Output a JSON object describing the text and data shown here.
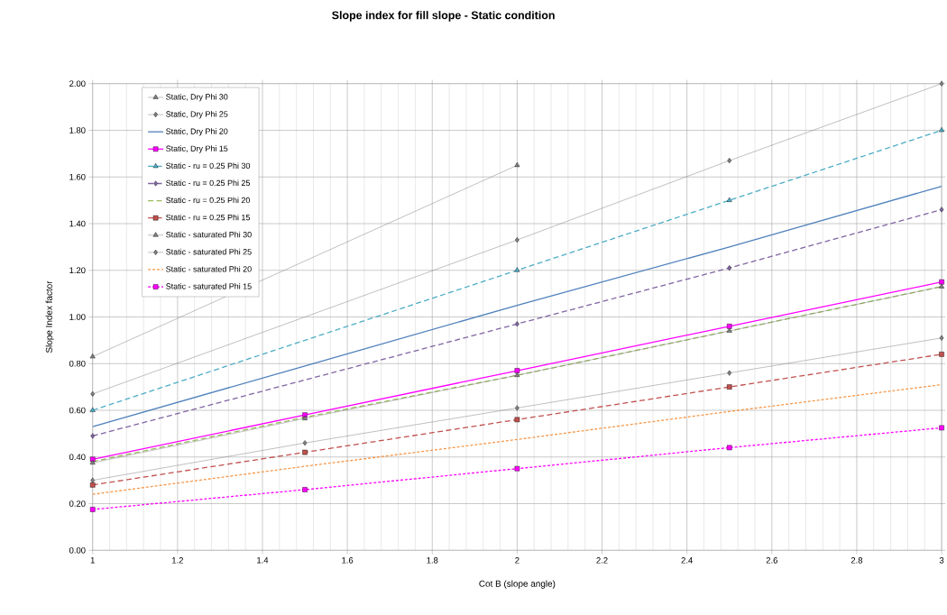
{
  "chart_data": {
    "type": "line",
    "title": "Slope index for fill slope - Static condition",
    "xlabel": "Cot B (slope angle)",
    "ylabel": "Slope Index factor",
    "x": [
      1,
      1.5,
      2,
      2.5,
      3
    ],
    "xlim": [
      1,
      3
    ],
    "xticks": [
      1,
      1.2,
      1.4,
      1.6,
      1.8,
      2,
      2.2,
      2.4,
      2.6,
      2.8,
      3
    ],
    "ylim": [
      0,
      2
    ],
    "yticks": [
      {
        "value": 0,
        "label": "0.00"
      },
      {
        "value": 0.2,
        "label": "0.20"
      },
      {
        "value": 0.4,
        "label": "0.40"
      },
      {
        "value": 0.6,
        "label": "0.60"
      },
      {
        "value": 0.8,
        "label": "0.80"
      },
      {
        "value": 1,
        "label": "1.00"
      },
      {
        "value": 1.2,
        "label": "1.20"
      },
      {
        "value": 1.4,
        "label": "1.40"
      },
      {
        "value": 1.6,
        "label": "1.60"
      },
      {
        "value": 1.8,
        "label": "1.80"
      },
      {
        "value": 2,
        "label": "2.00"
      }
    ],
    "grid": true,
    "legend": "top left",
    "series": [
      {
        "name": "Static, Dry Phi 30",
        "color": "#808080",
        "marker": "triangle",
        "line_style": "solid",
        "values": [
          0.83,
          null,
          1.65,
          null,
          null
        ]
      },
      {
        "name": "Static, Dry Phi 25",
        "color": "#808080",
        "marker": "diamond",
        "line_style": "solid",
        "values": [
          0.67,
          null,
          1.33,
          1.67,
          2.0
        ]
      },
      {
        "name": "Static, Dry Phi 20",
        "color": "#4f81bd",
        "marker": "none",
        "line_style": "solid",
        "values": [
          0.53,
          0.79,
          1.05,
          1.3,
          1.56
        ]
      },
      {
        "name": "Static, Dry Phi 15",
        "color": "#ff00ff",
        "marker": "square",
        "line_style": "solid",
        "values": [
          0.39,
          0.58,
          0.77,
          0.96,
          1.15
        ]
      },
      {
        "name": "Static - ru = 0.25 Phi 30",
        "color": "#4bacc6",
        "marker": "triangle",
        "line_style": "dashed",
        "values": [
          0.6,
          null,
          1.2,
          1.5,
          1.8
        ]
      },
      {
        "name": "Static - ru = 0.25 Phi 25",
        "color": "#8064a2",
        "marker": "diamond",
        "line_style": "dashed",
        "values": [
          0.49,
          null,
          0.97,
          1.21,
          1.46
        ]
      },
      {
        "name": "Static - ru = 0.25 Phi 20",
        "color": "#9bbb59",
        "marker": "none",
        "line_style": "dashed",
        "values": [
          0.38,
          0.57,
          0.75,
          0.94,
          1.13
        ]
      },
      {
        "name": "Static - ru = 0.25 Phi 15",
        "color": "#c0504d",
        "marker": "square",
        "line_style": "dashed",
        "values": [
          0.28,
          0.42,
          0.56,
          0.7,
          0.84
        ]
      },
      {
        "name": "Static - saturated Phi 30",
        "color": "#808080",
        "marker": "triangle",
        "line_style": "solid",
        "values": [
          0.375,
          0.565,
          0.75,
          0.94,
          1.13
        ]
      },
      {
        "name": "Static - saturated Phi 25",
        "color": "#808080",
        "marker": "diamond",
        "line_style": "solid",
        "values": [
          0.3,
          0.46,
          0.61,
          0.76,
          0.91
        ]
      },
      {
        "name": "Static - saturated Phi 20",
        "color": "#f79646",
        "marker": "none",
        "line_style": "dotted",
        "values": [
          0.24,
          0.36,
          0.475,
          0.595,
          0.71
        ]
      },
      {
        "name": "Static - saturated Phi 15",
        "color": "#ff00ff",
        "marker": "square",
        "line_style": "dotted",
        "values": [
          0.175,
          0.26,
          0.35,
          0.44,
          0.525
        ]
      }
    ]
  }
}
